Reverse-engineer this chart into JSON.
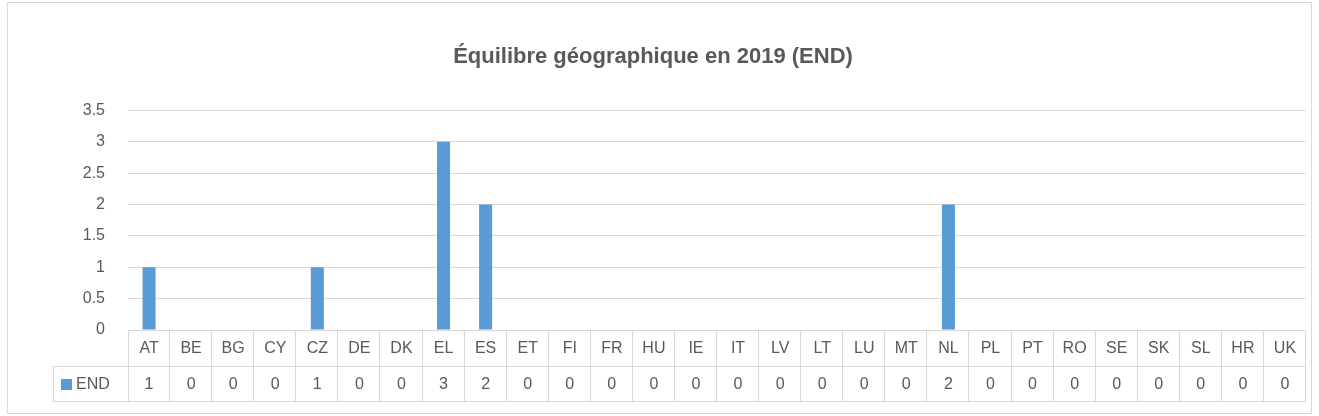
{
  "chart_data": {
    "type": "bar",
    "title": "Équilibre géographique en 2019 (END)",
    "categories": [
      "AT",
      "BE",
      "BG",
      "CY",
      "CZ",
      "DE",
      "DK",
      "EL",
      "ES",
      "ET",
      "FI",
      "FR",
      "HU",
      "IE",
      "IT",
      "LV",
      "LT",
      "LU",
      "MT",
      "NL",
      "PL",
      "PT",
      "RO",
      "SE",
      "SK",
      "SL",
      "HR",
      "UK"
    ],
    "series": [
      {
        "name": "END",
        "color": "#5b9bd5",
        "values": [
          1,
          0,
          0,
          0,
          1,
          0,
          0,
          3,
          2,
          0,
          0,
          0,
          0,
          0,
          0,
          0,
          0,
          0,
          0,
          2,
          0,
          0,
          0,
          0,
          0,
          0,
          0,
          0
        ]
      }
    ],
    "ylim": [
      0,
      3.5
    ],
    "yticks": [
      0,
      0.5,
      1,
      1.5,
      2,
      2.5,
      3,
      3.5
    ],
    "grid": "y",
    "legend": "bottom",
    "data_labels": true
  }
}
